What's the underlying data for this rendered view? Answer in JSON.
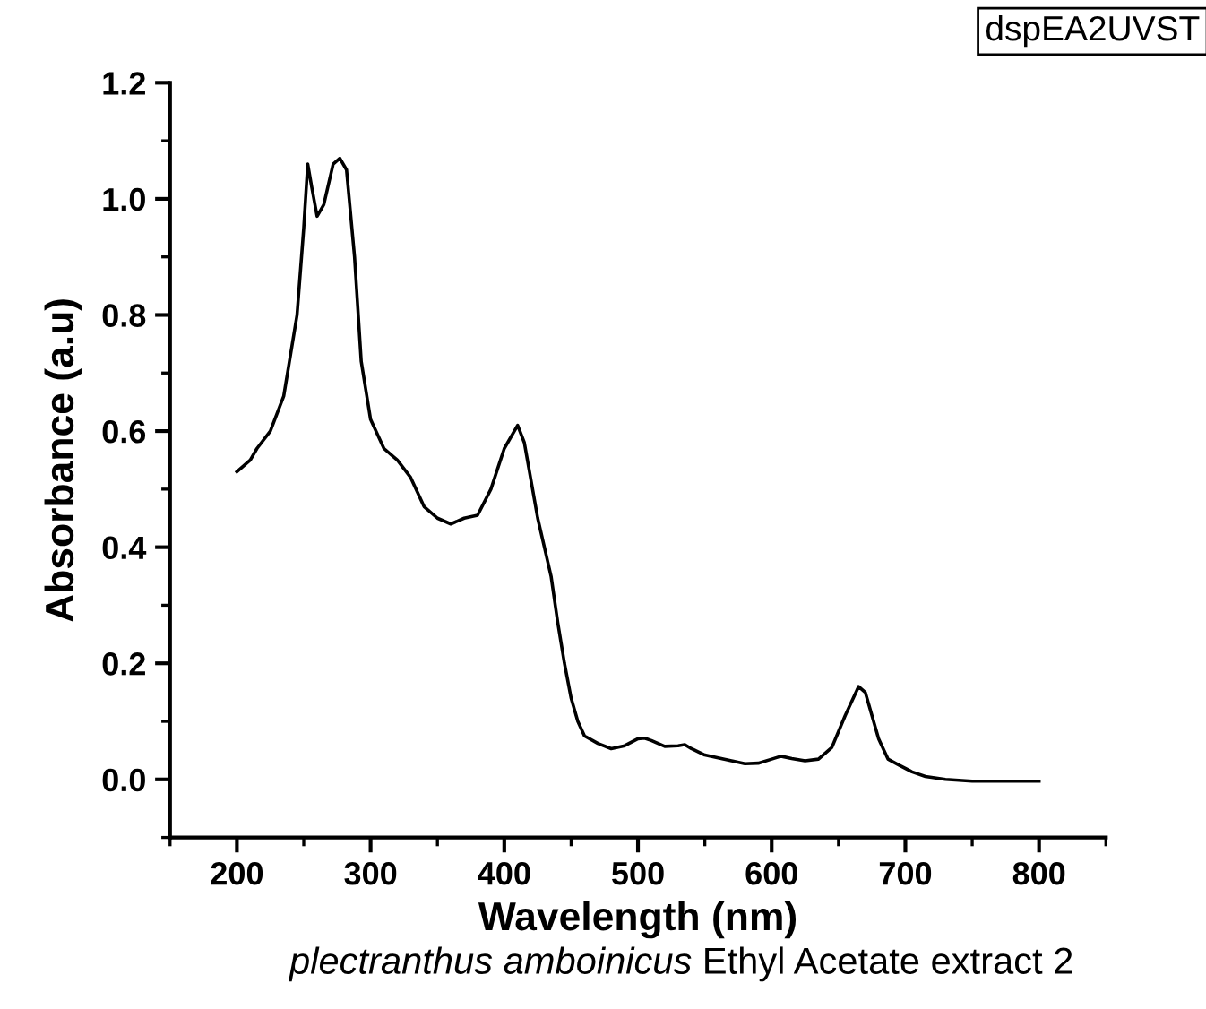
{
  "chart_data": {
    "type": "line",
    "xlabel": "Wavelength (nm)",
    "ylabel": "Absorbance (a.u)",
    "annotations": [
      "dspEA2UVST",
      "plectranthus amboinicus",
      "Ethyl Acetate extract 2"
    ],
    "xlim": [
      150,
      850
    ],
    "xticks": [
      200,
      300,
      400,
      500,
      600,
      700,
      800
    ],
    "ylim": [
      -0.1,
      1.2
    ],
    "yticks": [
      {
        "value": 0.0,
        "label": "0.0"
      },
      0.2,
      0.4,
      0.6,
      0.8,
      {
        "value": 1.0,
        "label": "1.0"
      },
      1.2
    ],
    "grid": false,
    "marker": "none",
    "line_style": "solid",
    "series": [
      {
        "color": "#000000",
        "x": [
          200,
          210,
          215,
          225,
          235,
          245,
          250,
          253,
          256,
          260,
          265,
          272,
          277,
          282,
          288,
          293,
          300,
          310,
          320,
          330,
          340,
          350,
          360,
          370,
          380,
          390,
          400,
          410,
          415,
          425,
          430,
          435,
          440,
          445,
          450,
          455,
          460,
          470,
          480,
          490,
          500,
          505,
          510,
          520,
          530,
          535,
          540,
          550,
          560,
          570,
          580,
          590,
          600,
          607,
          615,
          625,
          635,
          645,
          655,
          665,
          670,
          680,
          687,
          695,
          705,
          715,
          730,
          750,
          775,
          800
        ],
        "values": [
          0.53,
          0.55,
          0.57,
          0.6,
          0.66,
          0.8,
          0.95,
          1.06,
          1.02,
          0.97,
          0.99,
          1.06,
          1.07,
          1.05,
          0.9,
          0.72,
          0.62,
          0.57,
          0.55,
          0.52,
          0.47,
          0.45,
          0.44,
          0.45,
          0.455,
          0.5,
          0.57,
          0.61,
          0.58,
          0.45,
          0.4,
          0.35,
          0.27,
          0.2,
          0.14,
          0.1,
          0.075,
          0.062,
          0.053,
          0.058,
          0.07,
          0.071,
          0.067,
          0.057,
          0.058,
          0.06,
          0.053,
          0.042,
          0.037,
          0.032,
          0.027,
          0.028,
          0.035,
          0.04,
          0.036,
          0.032,
          0.035,
          0.055,
          0.11,
          0.16,
          0.15,
          0.07,
          0.035,
          0.025,
          0.013,
          0.005,
          0.0,
          -0.003,
          -0.003,
          -0.003
        ]
      }
    ]
  }
}
